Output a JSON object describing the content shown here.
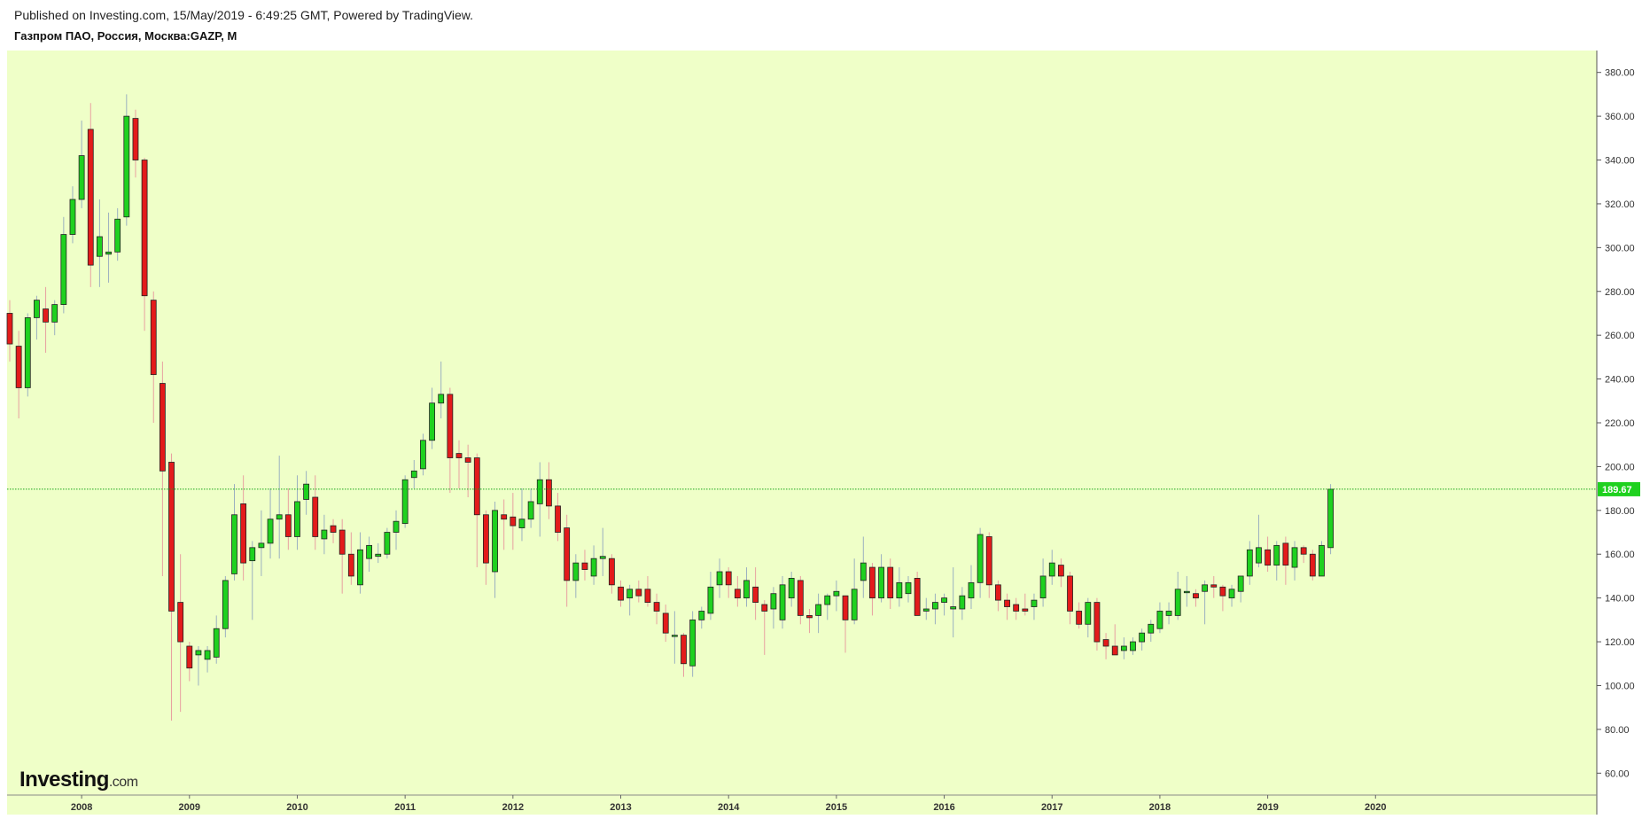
{
  "header": {
    "published": "Published on Investing.com, 15/May/2019 - 6:49:25 GMT, Powered by TradingView.",
    "symbol": "Газпром ПАО, Россия, Москва:GAZP, M"
  },
  "logo": {
    "brand": "Investing",
    "domain": ".com"
  },
  "colors": {
    "plot_bg": "#efffc8",
    "up": "#1fd11f",
    "down": "#e31b1b",
    "last_line": "#1aa61a",
    "last_label_bg": "#1fd11f"
  },
  "chart_data": {
    "type": "candlestick",
    "interval": "M",
    "ylim": [
      50,
      390
    ],
    "yticks": [
      "60.00",
      "80.00",
      "100.00",
      "120.00",
      "140.00",
      "160.00",
      "180.00",
      "200.00",
      "220.00",
      "240.00",
      "260.00",
      "280.00",
      "300.00",
      "320.00",
      "340.00",
      "360.00",
      "380.00"
    ],
    "xlabels": [
      "2008",
      "2009",
      "2010",
      "2011",
      "2012",
      "2013",
      "2014",
      "2015",
      "2016",
      "2017",
      "2018",
      "2019",
      "2020"
    ],
    "start": "2007-05",
    "last_price": 189.67,
    "last_price_label": "189.67",
    "candles": [
      [
        270,
        276,
        248,
        256
      ],
      [
        255,
        262,
        222,
        236
      ],
      [
        236,
        270,
        232,
        268
      ],
      [
        268,
        278,
        258,
        276
      ],
      [
        272,
        282,
        252,
        266
      ],
      [
        266,
        276,
        260,
        274
      ],
      [
        274,
        314,
        270,
        306
      ],
      [
        306,
        328,
        302,
        322
      ],
      [
        322,
        358,
        318,
        342
      ],
      [
        354,
        366,
        282,
        292
      ],
      [
        296,
        322,
        282,
        305
      ],
      [
        297,
        316,
        284,
        298
      ],
      [
        298,
        318,
        294,
        313
      ],
      [
        314,
        370,
        310,
        360
      ],
      [
        359,
        363,
        332,
        340
      ],
      [
        340,
        341,
        262,
        278
      ],
      [
        276,
        280,
        220,
        242
      ],
      [
        238,
        248,
        150,
        198
      ],
      [
        202,
        206,
        84,
        134
      ],
      [
        138,
        160,
        88,
        120
      ],
      [
        118,
        120,
        102,
        108
      ],
      [
        114,
        118,
        100,
        116
      ],
      [
        112,
        118,
        106,
        116
      ],
      [
        113,
        132,
        110,
        126
      ],
      [
        126,
        150,
        122,
        148
      ],
      [
        151,
        192,
        148,
        178
      ],
      [
        183,
        196,
        148,
        156
      ],
      [
        157,
        166,
        130,
        163
      ],
      [
        163,
        180,
        150,
        165
      ],
      [
        165,
        190,
        158,
        176
      ],
      [
        176,
        205,
        158,
        178
      ],
      [
        178,
        190,
        162,
        168
      ],
      [
        168,
        196,
        162,
        184
      ],
      [
        185,
        198,
        178,
        192
      ],
      [
        186,
        196,
        162,
        168
      ],
      [
        167,
        178,
        160,
        171
      ],
      [
        173,
        176,
        165,
        170
      ],
      [
        171,
        176,
        142,
        160
      ],
      [
        160,
        170,
        146,
        150
      ],
      [
        146,
        170,
        142,
        162
      ],
      [
        158,
        168,
        152,
        164
      ],
      [
        159,
        165,
        156,
        160
      ],
      [
        160,
        172,
        158,
        170
      ],
      [
        170,
        180,
        162,
        175
      ],
      [
        174,
        196,
        172,
        194
      ],
      [
        195,
        203,
        190,
        198
      ],
      [
        199,
        215,
        196,
        212
      ],
      [
        212,
        236,
        208,
        229
      ],
      [
        229,
        248,
        222,
        233
      ],
      [
        233,
        236,
        188,
        204
      ],
      [
        206,
        212,
        190,
        204
      ],
      [
        204,
        210,
        186,
        202
      ],
      [
        204,
        206,
        154,
        178
      ],
      [
        178,
        180,
        146,
        156
      ],
      [
        152,
        184,
        140,
        180
      ],
      [
        178,
        185,
        162,
        176
      ],
      [
        177,
        188,
        162,
        173
      ],
      [
        172,
        190,
        166,
        176
      ],
      [
        176,
        190,
        172,
        184
      ],
      [
        183,
        202,
        168,
        194
      ],
      [
        194,
        202,
        176,
        182
      ],
      [
        182,
        188,
        166,
        170
      ],
      [
        172,
        178,
        136,
        148
      ],
      [
        148,
        160,
        140,
        156
      ],
      [
        156,
        162,
        148,
        153
      ],
      [
        150,
        164,
        146,
        158
      ],
      [
        158,
        172,
        150,
        159
      ],
      [
        158,
        160,
        142,
        146
      ],
      [
        145,
        148,
        136,
        139
      ],
      [
        140,
        146,
        132,
        144
      ],
      [
        144,
        148,
        138,
        141
      ],
      [
        144,
        150,
        136,
        138
      ],
      [
        138,
        142,
        128,
        134
      ],
      [
        133,
        137,
        120,
        124
      ],
      [
        123,
        134,
        110,
        123
      ],
      [
        123,
        124,
        104,
        110
      ],
      [
        109,
        134,
        104,
        130
      ],
      [
        130,
        136,
        126,
        134
      ],
      [
        133,
        152,
        130,
        145
      ],
      [
        146,
        158,
        140,
        152
      ],
      [
        152,
        154,
        140,
        146
      ],
      [
        144,
        150,
        136,
        140
      ],
      [
        140,
        154,
        136,
        148
      ],
      [
        145,
        154,
        130,
        138
      ],
      [
        137,
        139,
        114,
        134
      ],
      [
        135,
        145,
        126,
        142
      ],
      [
        130,
        150,
        126,
        146
      ],
      [
        140,
        152,
        136,
        149
      ],
      [
        148,
        150,
        128,
        132
      ],
      [
        132,
        135,
        124,
        131
      ],
      [
        132,
        142,
        124,
        137
      ],
      [
        137,
        142,
        130,
        141
      ],
      [
        141,
        148,
        134,
        143
      ],
      [
        141,
        140,
        115,
        130
      ],
      [
        130,
        158,
        128,
        144
      ],
      [
        148,
        168,
        140,
        156
      ],
      [
        154,
        156,
        132,
        140
      ],
      [
        140,
        160,
        138,
        154
      ],
      [
        154,
        158,
        135,
        140
      ],
      [
        140,
        154,
        136,
        147
      ],
      [
        142,
        150,
        138,
        147
      ],
      [
        149,
        152,
        132,
        132
      ],
      [
        134,
        140,
        130,
        135
      ],
      [
        135,
        142,
        128,
        138
      ],
      [
        138,
        142,
        132,
        140
      ],
      [
        135,
        154,
        122,
        136
      ],
      [
        135,
        145,
        130,
        141
      ],
      [
        140,
        155,
        135,
        147
      ],
      [
        147,
        172,
        140,
        169
      ],
      [
        168,
        170,
        140,
        146
      ],
      [
        146,
        148,
        134,
        139
      ],
      [
        139,
        142,
        130,
        136
      ],
      [
        137,
        140,
        130,
        134
      ],
      [
        135,
        142,
        132,
        134
      ],
      [
        136,
        142,
        130,
        139
      ],
      [
        140,
        158,
        136,
        150
      ],
      [
        150,
        162,
        146,
        156
      ],
      [
        155,
        158,
        145,
        150
      ],
      [
        150,
        152,
        128,
        134
      ],
      [
        134,
        138,
        126,
        128
      ],
      [
        128,
        140,
        122,
        138
      ],
      [
        138,
        140,
        116,
        120
      ],
      [
        121,
        124,
        112,
        118
      ],
      [
        118,
        128,
        114,
        114
      ],
      [
        116,
        122,
        112,
        118
      ],
      [
        116,
        122,
        114,
        120
      ],
      [
        120,
        126,
        116,
        124
      ],
      [
        124,
        130,
        120,
        128
      ],
      [
        126,
        138,
        124,
        134
      ],
      [
        132,
        138,
        128,
        134
      ],
      [
        132,
        152,
        130,
        144
      ],
      [
        143,
        150,
        136,
        143
      ],
      [
        142,
        144,
        136,
        140
      ],
      [
        143,
        148,
        128,
        146
      ],
      [
        146,
        150,
        140,
        145
      ],
      [
        145,
        146,
        134,
        141
      ],
      [
        140,
        146,
        136,
        144
      ],
      [
        143,
        150,
        138,
        150
      ],
      [
        150,
        166,
        146,
        162
      ],
      [
        156,
        178,
        154,
        163
      ],
      [
        162,
        168,
        152,
        155
      ],
      [
        155,
        166,
        148,
        164
      ],
      [
        165,
        168,
        146,
        155
      ],
      [
        154,
        166,
        148,
        163
      ],
      [
        163,
        164,
        156,
        160
      ],
      [
        160,
        162,
        148,
        150
      ],
      [
        150,
        166,
        150,
        164
      ],
      [
        163,
        192,
        160,
        189.67
      ]
    ]
  }
}
